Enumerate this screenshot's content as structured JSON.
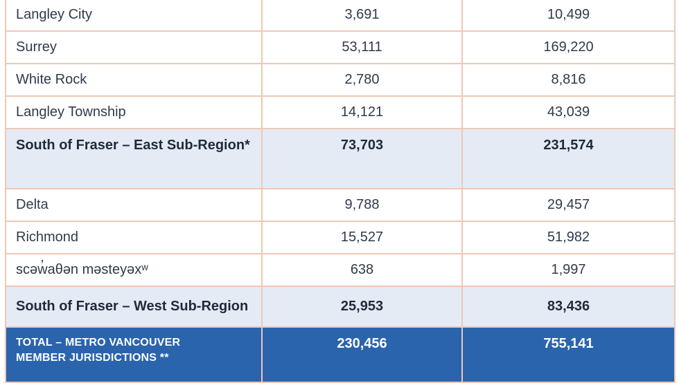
{
  "rows": [
    {
      "name": "Langley City",
      "a": "3,691",
      "b": "10,499"
    },
    {
      "name": "Surrey",
      "a": "53,111",
      "b": "169,220"
    },
    {
      "name": "White Rock",
      "a": "2,780",
      "b": "8,816"
    },
    {
      "name": "Langley Township",
      "a": "14,121",
      "b": "43,039"
    },
    {
      "name": "South of Fraser – East Sub-Region*",
      "a": "73,703",
      "b": "231,574"
    },
    {
      "name": "Delta",
      "a": "9,788",
      "b": "29,457"
    },
    {
      "name": "Richmond",
      "a": "15,527",
      "b": "51,982"
    },
    {
      "name": "scəw̓aθən məsteyəxʷ",
      "a": "638",
      "b": "1,997"
    },
    {
      "name": "South of Fraser – West Sub-Region",
      "a": "25,953",
      "b": "83,436"
    }
  ],
  "total": {
    "line1": "TOTAL – METRO VANCOUVER",
    "line2": "MEMBER JURISDICTIONS **",
    "a": "230,456",
    "b": "755,141"
  }
}
